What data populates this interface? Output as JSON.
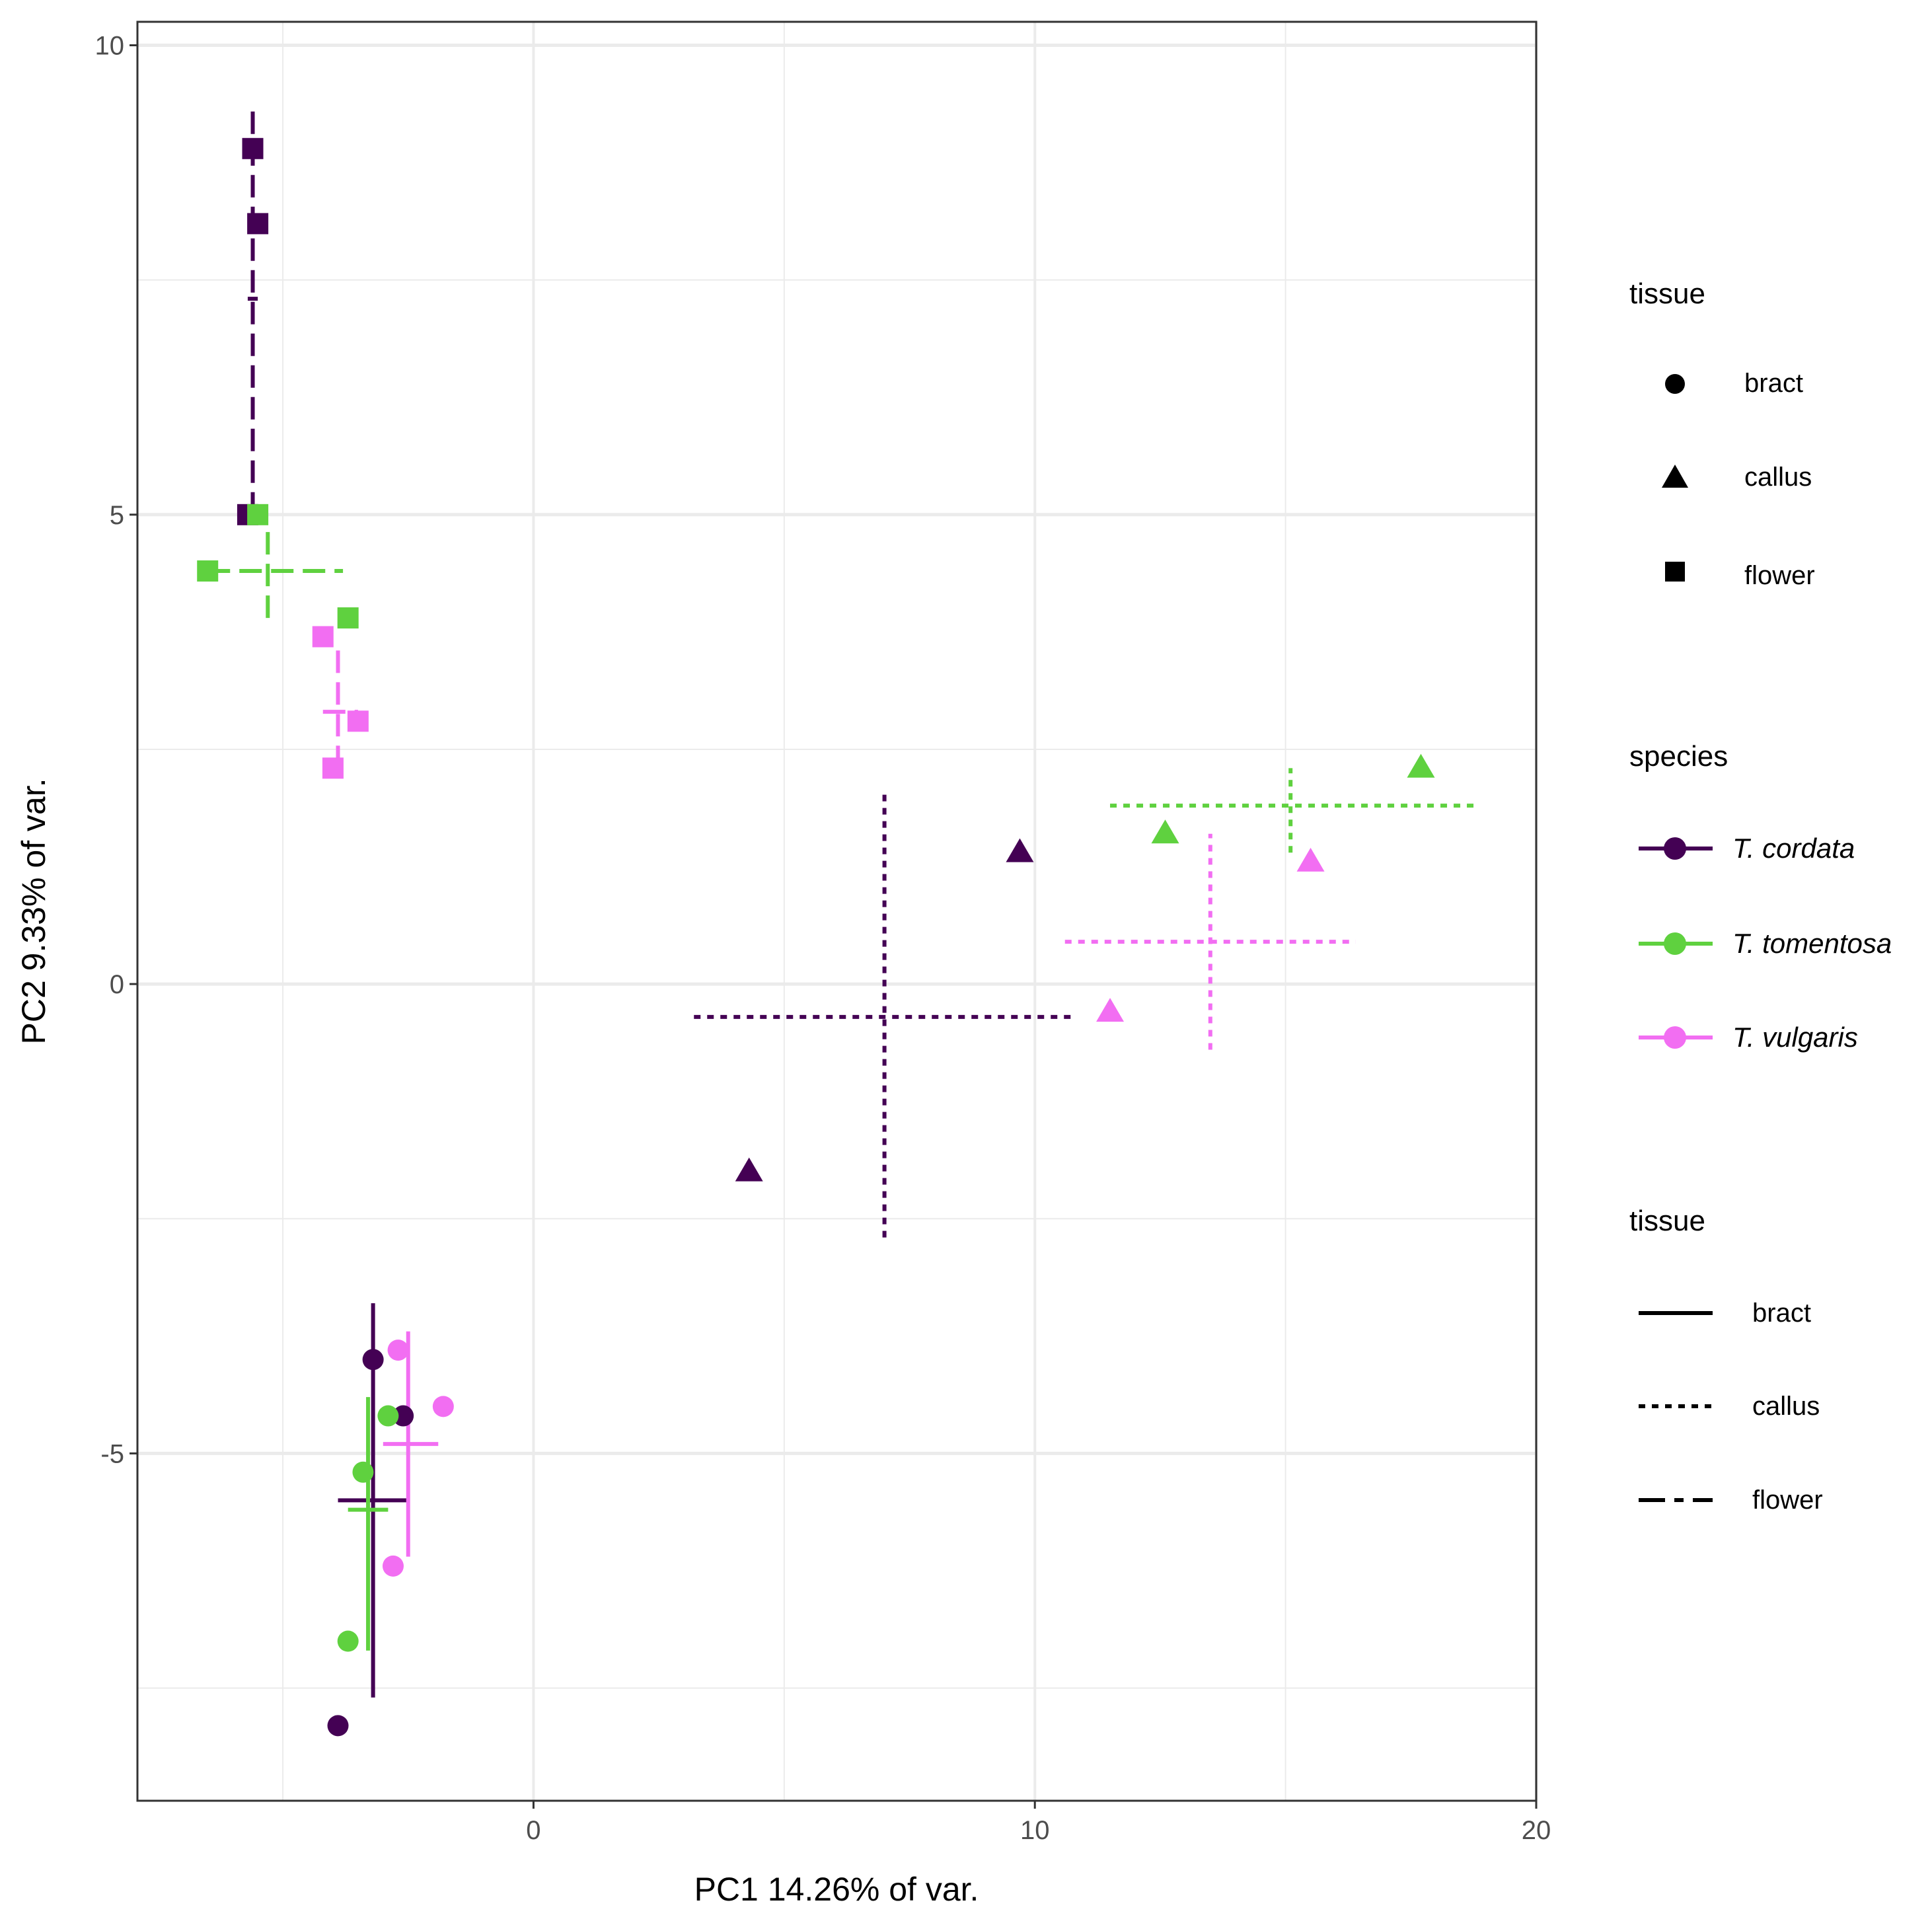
{
  "chart_data": {
    "type": "scatter",
    "title": "",
    "xlabel": "PC1 14.26% of var.",
    "ylabel": "PC2 9.33% of var.",
    "xlim": [
      -7.9,
      20
    ],
    "ylim": [
      -8.7,
      10.25
    ],
    "x_ticks": [
      0,
      10,
      20
    ],
    "x_tick_labels": [
      "0",
      "10",
      "20"
    ],
    "y_ticks": [
      -5,
      0,
      5,
      10
    ],
    "y_tick_labels": [
      "-5",
      "0",
      "5",
      "10"
    ],
    "x_minor_grid": [
      -5,
      5,
      15
    ],
    "y_minor_grid": [
      -7.5,
      -2.5,
      2.5,
      7.5
    ],
    "grid": true,
    "species": [
      {
        "name": "T. cordata",
        "color": "#440154"
      },
      {
        "name": "T. tomentosa",
        "color": "#5fd13f"
      },
      {
        "name": "T. vulgaris",
        "color": "#f26ef2"
      }
    ],
    "points": [
      {
        "species": "T. cordata",
        "tissue": "flower",
        "x": -5.6,
        "y": 8.9
      },
      {
        "species": "T. cordata",
        "tissue": "flower",
        "x": -5.5,
        "y": 8.1
      },
      {
        "species": "T. cordata",
        "tissue": "flower",
        "x": -5.7,
        "y": 5.0
      },
      {
        "species": "T. tomentosa",
        "tissue": "flower",
        "x": -5.5,
        "y": 5.0
      },
      {
        "species": "T. tomentosa",
        "tissue": "flower",
        "x": -6.5,
        "y": 4.4
      },
      {
        "species": "T. tomentosa",
        "tissue": "flower",
        "x": -3.7,
        "y": 3.9
      },
      {
        "species": "T. vulgaris",
        "tissue": "flower",
        "x": -4.2,
        "y": 3.7
      },
      {
        "species": "T. vulgaris",
        "tissue": "flower",
        "x": -3.5,
        "y": 2.8
      },
      {
        "species": "T. vulgaris",
        "tissue": "flower",
        "x": -4.0,
        "y": 2.3
      },
      {
        "species": "T. cordata",
        "tissue": "callus",
        "x": 9.7,
        "y": 1.4
      },
      {
        "species": "T. cordata",
        "tissue": "callus",
        "x": 4.3,
        "y": -2.0
      },
      {
        "species": "T. tomentosa",
        "tissue": "callus",
        "x": 17.7,
        "y": 2.3
      },
      {
        "species": "T. tomentosa",
        "tissue": "callus",
        "x": 12.6,
        "y": 1.6
      },
      {
        "species": "T. vulgaris",
        "tissue": "callus",
        "x": 15.5,
        "y": 1.3
      },
      {
        "species": "T. vulgaris",
        "tissue": "callus",
        "x": 11.5,
        "y": -0.3
      },
      {
        "species": "T. cordata",
        "tissue": "bract",
        "x": -3.2,
        "y": -4.0
      },
      {
        "species": "T. cordata",
        "tissue": "bract",
        "x": -2.6,
        "y": -4.6
      },
      {
        "species": "T. cordata",
        "tissue": "bract",
        "x": -3.9,
        "y": -7.9
      },
      {
        "species": "T. tomentosa",
        "tissue": "bract",
        "x": -2.9,
        "y": -4.6
      },
      {
        "species": "T. tomentosa",
        "tissue": "bract",
        "x": -3.4,
        "y": -5.2
      },
      {
        "species": "T. tomentosa",
        "tissue": "bract",
        "x": -3.7,
        "y": -7.0
      },
      {
        "species": "T. vulgaris",
        "tissue": "bract",
        "x": -2.7,
        "y": -3.9
      },
      {
        "species": "T. vulgaris",
        "tissue": "bract",
        "x": -1.8,
        "y": -4.5
      },
      {
        "species": "T. vulgaris",
        "tissue": "bract",
        "x": -2.8,
        "y": -6.2
      }
    ],
    "centroids": [
      {
        "species": "T. cordata",
        "tissue": "flower",
        "x": -5.6,
        "y": 7.3,
        "xmin": -5.7,
        "xmax": -5.5,
        "ymin": 5.0,
        "ymax": 9.3
      },
      {
        "species": "T. tomentosa",
        "tissue": "flower",
        "x": -5.3,
        "y": 4.4,
        "xmin": -6.5,
        "xmax": -3.8,
        "ymin": 3.9,
        "ymax": 4.9
      },
      {
        "species": "T. vulgaris",
        "tissue": "flower",
        "x": -3.9,
        "y": 2.9,
        "xmin": -4.2,
        "xmax": -3.5,
        "ymin": 2.3,
        "ymax": 3.6
      },
      {
        "species": "T. cordata",
        "tissue": "callus",
        "x": 7.0,
        "y": -0.35,
        "xmin": 3.2,
        "xmax": 10.8,
        "ymin": -2.7,
        "ymax": 2.05
      },
      {
        "species": "T. tomentosa",
        "tissue": "callus",
        "x": 15.1,
        "y": 1.9,
        "xmin": 11.5,
        "xmax": 18.8,
        "ymin": 1.4,
        "ymax": 2.3
      },
      {
        "species": "T. vulgaris",
        "tissue": "callus",
        "x": 13.5,
        "y": 0.45,
        "xmin": 10.6,
        "xmax": 16.4,
        "ymin": -0.7,
        "ymax": 1.6
      },
      {
        "species": "T. cordata",
        "tissue": "bract",
        "x": -3.2,
        "y": -5.5,
        "xmin": -3.9,
        "xmax": -2.5,
        "ymin": -7.6,
        "ymax": -3.4
      },
      {
        "species": "T. tomentosa",
        "tissue": "bract",
        "x": -3.3,
        "y": -5.6,
        "xmin": -3.7,
        "xmax": -2.9,
        "ymin": -7.1,
        "ymax": -4.4
      },
      {
        "species": "T. vulgaris",
        "tissue": "bract",
        "x": -2.5,
        "y": -4.9,
        "xmin": -3.0,
        "xmax": -1.9,
        "ymin": -6.1,
        "ymax": -3.7
      }
    ],
    "legends": [
      {
        "title": "tissue",
        "kind": "shape",
        "entries": [
          {
            "label": "bract",
            "shape": "circle"
          },
          {
            "label": "callus",
            "shape": "triangle"
          },
          {
            "label": "flower",
            "shape": "square"
          }
        ]
      },
      {
        "title": "species",
        "kind": "color",
        "entries": [
          {
            "label": "T. cordata"
          },
          {
            "label": "T. tomentosa"
          },
          {
            "label": "T. vulgaris"
          }
        ]
      },
      {
        "title": "tissue",
        "kind": "linetype",
        "entries": [
          {
            "label": "bract",
            "dash": "solid"
          },
          {
            "label": "callus",
            "dash": "dotted"
          },
          {
            "label": "flower",
            "dash": "dashed"
          }
        ]
      }
    ],
    "legend_position": "right"
  }
}
